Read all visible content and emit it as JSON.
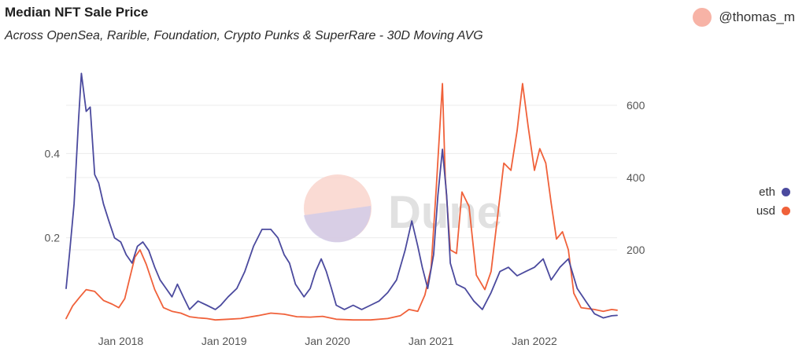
{
  "header": {
    "title": "Median NFT Sale Price",
    "subtitle": "Across OpenSea, Rarible, Foundation, Crypto Punks & SuperRare - 30D Moving AVG",
    "author": "@thomas_m"
  },
  "watermark": {
    "text": "Dune"
  },
  "colors": {
    "eth": "#4b4a9e",
    "usd": "#f0613a",
    "avatar": "#f7b3a6",
    "grid": "#ececec",
    "tick_text": "#555555"
  },
  "chart_data": {
    "type": "line",
    "title": "Median NFT Sale Price",
    "subtitle": "Across OpenSea, Rarible, Foundation, Crypto Punks & SuperRare - 30D Moving AVG",
    "xlabel": "",
    "ylabel_left": "",
    "ylabel_right": "",
    "x_range": [
      "2017-06-22",
      "2022-10-20"
    ],
    "x_ticks": [
      {
        "date": "2018-01-01",
        "label": "Jan 2018"
      },
      {
        "date": "2019-01-01",
        "label": "Jan 2019"
      },
      {
        "date": "2020-01-01",
        "label": "Jan 2020"
      },
      {
        "date": "2021-01-01",
        "label": "Jan 2021"
      },
      {
        "date": "2022-01-01",
        "label": "Jan 2022"
      }
    ],
    "y_left": {
      "range": [
        0,
        0.6
      ],
      "ticks": [
        0.2,
        0.4
      ]
    },
    "y_right": {
      "range": [
        0,
        700
      ],
      "ticks": [
        200,
        400,
        600
      ]
    },
    "grid": true,
    "legend_position": "right",
    "series": [
      {
        "name": "eth",
        "axis": "left",
        "points": [
          [
            "2017-06-22",
            0.08
          ],
          [
            "2017-07-05",
            0.17
          ],
          [
            "2017-07-20",
            0.28
          ],
          [
            "2017-08-05",
            0.48
          ],
          [
            "2017-08-15",
            0.59
          ],
          [
            "2017-09-01",
            0.5
          ],
          [
            "2017-09-15",
            0.51
          ],
          [
            "2017-10-01",
            0.35
          ],
          [
            "2017-10-15",
            0.33
          ],
          [
            "2017-11-01",
            0.28
          ],
          [
            "2017-11-20",
            0.24
          ],
          [
            "2017-12-10",
            0.2
          ],
          [
            "2018-01-01",
            0.19
          ],
          [
            "2018-01-20",
            0.16
          ],
          [
            "2018-02-10",
            0.14
          ],
          [
            "2018-03-01",
            0.18
          ],
          [
            "2018-03-20",
            0.19
          ],
          [
            "2018-04-10",
            0.17
          ],
          [
            "2018-05-01",
            0.13
          ],
          [
            "2018-05-20",
            0.1
          ],
          [
            "2018-06-10",
            0.08
          ],
          [
            "2018-07-01",
            0.06
          ],
          [
            "2018-07-20",
            0.09
          ],
          [
            "2018-08-10",
            0.06
          ],
          [
            "2018-09-01",
            0.03
          ],
          [
            "2018-10-01",
            0.05
          ],
          [
            "2018-11-01",
            0.04
          ],
          [
            "2018-12-01",
            0.03
          ],
          [
            "2018-12-20",
            0.04
          ],
          [
            "2019-01-15",
            0.06
          ],
          [
            "2019-02-15",
            0.08
          ],
          [
            "2019-03-15",
            0.12
          ],
          [
            "2019-04-15",
            0.18
          ],
          [
            "2019-05-15",
            0.22
          ],
          [
            "2019-06-15",
            0.22
          ],
          [
            "2019-07-10",
            0.2
          ],
          [
            "2019-08-01",
            0.16
          ],
          [
            "2019-08-20",
            0.14
          ],
          [
            "2019-09-10",
            0.09
          ],
          [
            "2019-10-10",
            0.06
          ],
          [
            "2019-11-01",
            0.08
          ],
          [
            "2019-11-20",
            0.12
          ],
          [
            "2019-12-10",
            0.15
          ],
          [
            "2019-12-28",
            0.12
          ],
          [
            "2020-01-15",
            0.08
          ],
          [
            "2020-02-01",
            0.04
          ],
          [
            "2020-03-01",
            0.03
          ],
          [
            "2020-04-01",
            0.04
          ],
          [
            "2020-05-01",
            0.03
          ],
          [
            "2020-06-01",
            0.04
          ],
          [
            "2020-07-01",
            0.05
          ],
          [
            "2020-08-01",
            0.07
          ],
          [
            "2020-09-01",
            0.1
          ],
          [
            "2020-10-01",
            0.17
          ],
          [
            "2020-10-25",
            0.24
          ],
          [
            "2020-11-15",
            0.18
          ],
          [
            "2020-12-01",
            0.13
          ],
          [
            "2020-12-20",
            0.08
          ],
          [
            "2021-01-10",
            0.16
          ],
          [
            "2021-01-25",
            0.3
          ],
          [
            "2021-02-10",
            0.41
          ],
          [
            "2021-02-25",
            0.3
          ],
          [
            "2021-03-10",
            0.14
          ],
          [
            "2021-04-01",
            0.09
          ],
          [
            "2021-05-01",
            0.08
          ],
          [
            "2021-06-01",
            0.05
          ],
          [
            "2021-07-01",
            0.03
          ],
          [
            "2021-08-01",
            0.07
          ],
          [
            "2021-09-01",
            0.12
          ],
          [
            "2021-10-01",
            0.13
          ],
          [
            "2021-11-01",
            0.11
          ],
          [
            "2021-12-01",
            0.12
          ],
          [
            "2022-01-01",
            0.13
          ],
          [
            "2022-02-01",
            0.15
          ],
          [
            "2022-03-01",
            0.1
          ],
          [
            "2022-04-01",
            0.13
          ],
          [
            "2022-05-01",
            0.15
          ],
          [
            "2022-06-01",
            0.08
          ],
          [
            "2022-07-01",
            0.05
          ],
          [
            "2022-08-01",
            0.02
          ],
          [
            "2022-09-01",
            0.01
          ],
          [
            "2022-10-01",
            0.015
          ],
          [
            "2022-10-20",
            0.016
          ]
        ]
      },
      {
        "name": "usd",
        "axis": "right",
        "points": [
          [
            "2017-06-22",
            10
          ],
          [
            "2017-07-15",
            45
          ],
          [
            "2017-08-10",
            70
          ],
          [
            "2017-09-01",
            90
          ],
          [
            "2017-10-01",
            85
          ],
          [
            "2017-11-01",
            60
          ],
          [
            "2017-12-01",
            50
          ],
          [
            "2017-12-25",
            40
          ],
          [
            "2018-01-15",
            65
          ],
          [
            "2018-02-01",
            120
          ],
          [
            "2018-02-20",
            180
          ],
          [
            "2018-03-10",
            200
          ],
          [
            "2018-04-01",
            160
          ],
          [
            "2018-05-01",
            90
          ],
          [
            "2018-06-01",
            40
          ],
          [
            "2018-07-01",
            30
          ],
          [
            "2018-08-01",
            25
          ],
          [
            "2018-09-01",
            15
          ],
          [
            "2018-10-01",
            12
          ],
          [
            "2018-11-01",
            10
          ],
          [
            "2018-12-01",
            6
          ],
          [
            "2019-01-15",
            8
          ],
          [
            "2019-03-01",
            10
          ],
          [
            "2019-05-01",
            18
          ],
          [
            "2019-06-15",
            25
          ],
          [
            "2019-08-01",
            22
          ],
          [
            "2019-09-15",
            15
          ],
          [
            "2019-11-01",
            14
          ],
          [
            "2019-12-15",
            16
          ],
          [
            "2020-02-01",
            8
          ],
          [
            "2020-04-01",
            6
          ],
          [
            "2020-06-01",
            6
          ],
          [
            "2020-08-01",
            10
          ],
          [
            "2020-09-15",
            18
          ],
          [
            "2020-10-15",
            35
          ],
          [
            "2020-11-15",
            30
          ],
          [
            "2020-12-10",
            75
          ],
          [
            "2021-01-01",
            150
          ],
          [
            "2021-01-20",
            380
          ],
          [
            "2021-02-10",
            660
          ],
          [
            "2021-02-20",
            400
          ],
          [
            "2021-03-10",
            200
          ],
          [
            "2021-04-01",
            190
          ],
          [
            "2021-04-20",
            360
          ],
          [
            "2021-05-15",
            320
          ],
          [
            "2021-06-10",
            130
          ],
          [
            "2021-07-10",
            90
          ],
          [
            "2021-08-01",
            140
          ],
          [
            "2021-08-25",
            300
          ],
          [
            "2021-09-15",
            440
          ],
          [
            "2021-10-10",
            420
          ],
          [
            "2021-11-01",
            530
          ],
          [
            "2021-11-20",
            660
          ],
          [
            "2021-12-10",
            540
          ],
          [
            "2022-01-01",
            420
          ],
          [
            "2022-01-20",
            480
          ],
          [
            "2022-02-10",
            440
          ],
          [
            "2022-03-01",
            330
          ],
          [
            "2022-03-20",
            230
          ],
          [
            "2022-04-10",
            250
          ],
          [
            "2022-05-01",
            200
          ],
          [
            "2022-05-20",
            80
          ],
          [
            "2022-06-15",
            40
          ],
          [
            "2022-08-01",
            35
          ],
          [
            "2022-09-01",
            30
          ],
          [
            "2022-10-01",
            35
          ],
          [
            "2022-10-20",
            33
          ]
        ]
      }
    ]
  }
}
